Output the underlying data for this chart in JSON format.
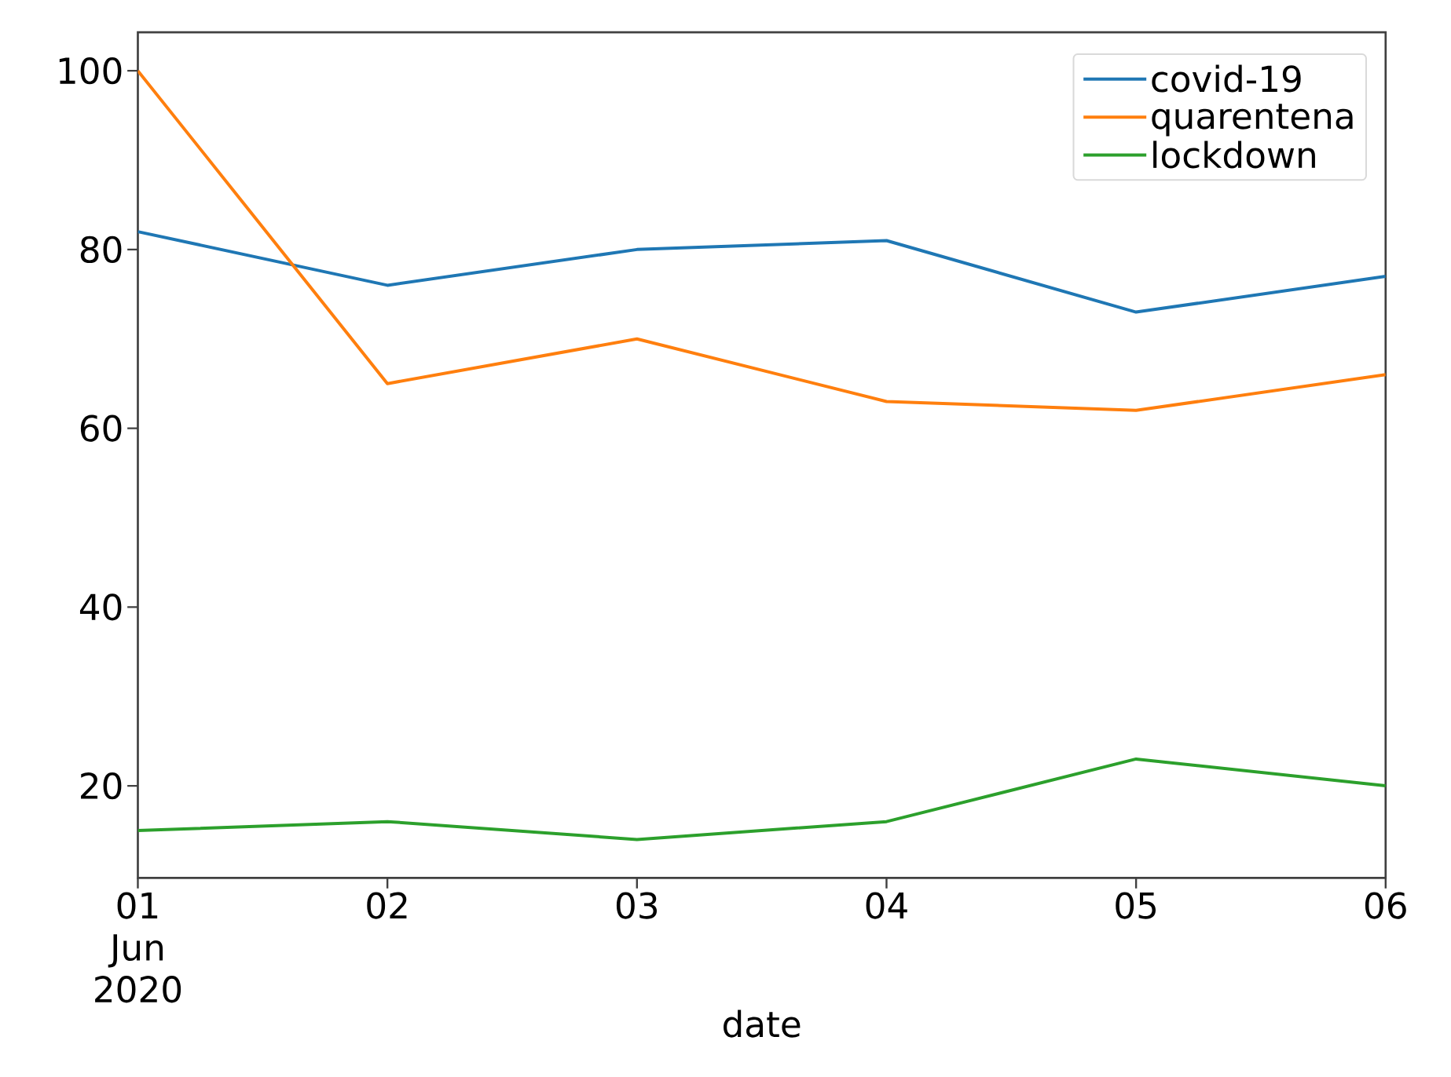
{
  "chart_data": {
    "type": "line",
    "xlabel": "date",
    "x": [
      "2020-06-01",
      "2020-06-02",
      "2020-06-03",
      "2020-06-04",
      "2020-06-05",
      "2020-06-06"
    ],
    "series": [
      {
        "name": "covid-19",
        "color": "#1f77b4",
        "values": [
          82,
          76,
          80,
          81,
          73,
          77
        ]
      },
      {
        "name": "quarentena",
        "color": "#ff7f0e",
        "values": [
          100,
          65,
          70,
          63,
          62,
          66
        ]
      },
      {
        "name": "lockdown",
        "color": "#2ca02c",
        "values": [
          15,
          16,
          14,
          16,
          23,
          20
        ]
      }
    ],
    "xlim": [
      "2020-06-01",
      "2020-06-06"
    ],
    "xticks": [
      {
        "value": "2020-06-01",
        "label": "01 Jun 2020"
      },
      {
        "value": "2020-06-02",
        "label": "02"
      },
      {
        "value": "2020-06-03",
        "label": "03"
      },
      {
        "value": "2020-06-04",
        "label": "04"
      },
      {
        "value": "2020-06-05",
        "label": "05"
      },
      {
        "value": "2020-06-06",
        "label": "06"
      }
    ],
    "ylim": [
      9.7,
      104.3
    ],
    "yticks": [
      20,
      40,
      60,
      80,
      100
    ],
    "grid": false,
    "legend": "top right"
  }
}
